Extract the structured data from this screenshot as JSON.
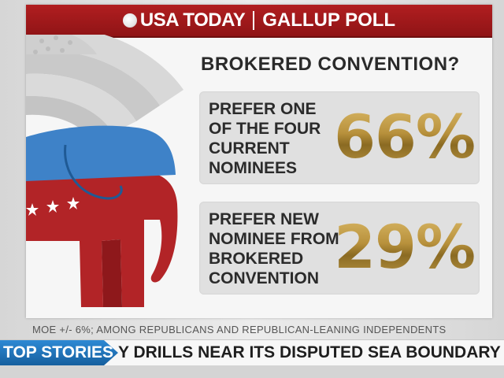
{
  "header": {
    "brand": "USA TODAY",
    "poll": "GALLUP POLL",
    "accent_color": "#a3191b"
  },
  "question": "BROKERED CONVENTION?",
  "results": [
    {
      "label": "PREFER ONE\nOF THE FOUR\nCURRENT\nNOMINEES",
      "percent": "66%"
    },
    {
      "label": "PREFER NEW\nNOMINEE FROM\nBROKERED\nCONVENTION",
      "percent": "29%"
    }
  ],
  "footnote": "MOE +/- 6%; AMONG REPUBLICANS AND REPUBLICAN-LEANING INDEPENDENTS",
  "ticker": {
    "tag": "TOP STORIES",
    "text": "Y DRILLS NEAR ITS DISPUTED SEA BOUNDARY WITH NORTH",
    "tag_color": "#1f74bd"
  },
  "icons": [
    "globe-icon",
    "elephant-icon",
    "star-icon",
    "flag-bunting-icon"
  ]
}
